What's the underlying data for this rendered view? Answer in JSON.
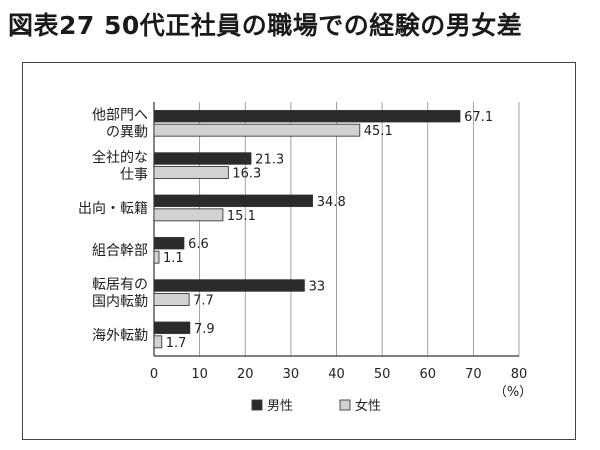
{
  "chart_data": {
    "type": "bar",
    "orientation": "horizontal",
    "title": "図表27 50代正社員の職場での経験の男女差",
    "categories": [
      [
        "他部門へ",
        "の異動"
      ],
      [
        "全社的な",
        "仕事"
      ],
      [
        "出向・転籍"
      ],
      [
        "組合幹部"
      ],
      [
        "転居有の",
        "国内転勤"
      ],
      [
        "海外転勤"
      ]
    ],
    "series": [
      {
        "name": "男性",
        "values": [
          67.1,
          21.3,
          34.8,
          6.6,
          33,
          7.9
        ],
        "labels": [
          "67.1",
          "21.3",
          "34.8",
          "6.6",
          "33",
          "7.9"
        ],
        "color": "#2b2b2b"
      },
      {
        "name": "女性",
        "values": [
          45.1,
          16.3,
          15.1,
          1.1,
          7.7,
          1.7
        ],
        "labels": [
          "45.1",
          "16.3",
          "15.1",
          "1.1",
          "7.7",
          "1.7"
        ],
        "color": "#d2d2d2"
      }
    ],
    "xlim": [
      0,
      80
    ],
    "xticks": [
      0,
      10,
      20,
      30,
      40,
      50,
      60,
      70,
      80
    ],
    "unit": "（%）",
    "grid": true,
    "legend_position": "bottom"
  }
}
